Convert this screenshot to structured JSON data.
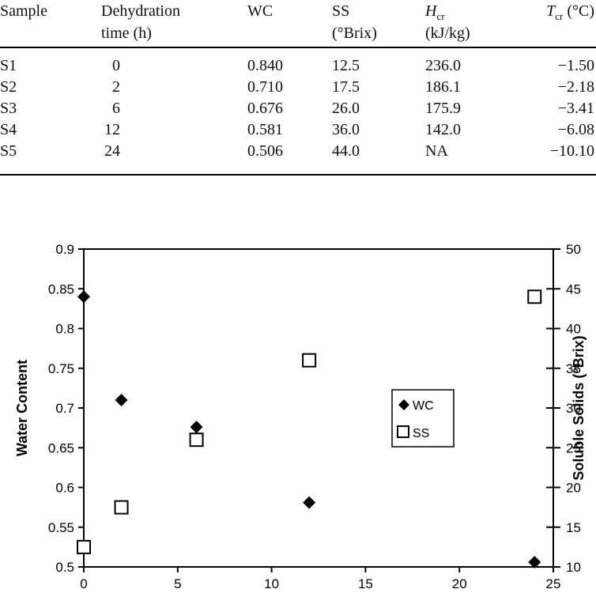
{
  "table": {
    "headers": {
      "sample": "Sample",
      "time_line1": "Dehydration",
      "time_line2": "time (h)",
      "wc": "WC",
      "ss_line1": "SS",
      "ss_line2": "(°Brix)",
      "hcr_main": "H",
      "hcr_sub": "cr",
      "hcr_line2": "(kJ/kg)",
      "tcr_main": "T",
      "tcr_sub": "cr",
      "tcr_unit": " (°C)"
    },
    "rows": [
      {
        "sample": "S1",
        "time": "0",
        "wc": "0.840",
        "ss": "12.5",
        "hcr": "236.0",
        "tcr": "−1.50"
      },
      {
        "sample": "S2",
        "time": "2",
        "wc": "0.710",
        "ss": "17.5",
        "hcr": "186.1",
        "tcr": "−2.18"
      },
      {
        "sample": "S3",
        "time": "6",
        "wc": "0.676",
        "ss": "26.0",
        "hcr": "175.9",
        "tcr": "−3.41"
      },
      {
        "sample": "S4",
        "time": "12",
        "wc": "0.581",
        "ss": "36.0",
        "hcr": "142.0",
        "tcr": "−6.08"
      },
      {
        "sample": "S5",
        "time": "24",
        "wc": "0.506",
        "ss": "44.0",
        "hcr": "NA",
        "tcr": "−10.10"
      }
    ]
  },
  "chart_data": {
    "type": "scatter",
    "title": "",
    "xlabel": "",
    "ylabel": "Water Content",
    "y2label": "Soluble Solids (°Brix)",
    "xlim": [
      0,
      25
    ],
    "ylim": [
      0.5,
      0.9
    ],
    "y2lim": [
      10,
      50
    ],
    "x_ticks": [
      "0",
      "5",
      "10",
      "15",
      "20",
      "25"
    ],
    "y_ticks": [
      "0.5",
      "0.55",
      "0.6",
      "0.65",
      "0.7",
      "0.75",
      "0.8",
      "0.85",
      "0.9"
    ],
    "y2_ticks": [
      "10",
      "15",
      "20",
      "25",
      "30",
      "35",
      "40",
      "45",
      "50"
    ],
    "grid": false,
    "legend_position": "right-center inside plot",
    "series": [
      {
        "name": "WC",
        "marker": "filled-diamond",
        "axis": "left",
        "x": [
          0,
          2,
          6,
          12,
          24
        ],
        "values": [
          0.84,
          0.71,
          0.676,
          0.581,
          0.506
        ]
      },
      {
        "name": "SS",
        "marker": "open-square",
        "axis": "right",
        "x": [
          0,
          2,
          6,
          12,
          24
        ],
        "values": [
          12.5,
          17.5,
          26.0,
          36.0,
          44.0
        ]
      }
    ]
  }
}
